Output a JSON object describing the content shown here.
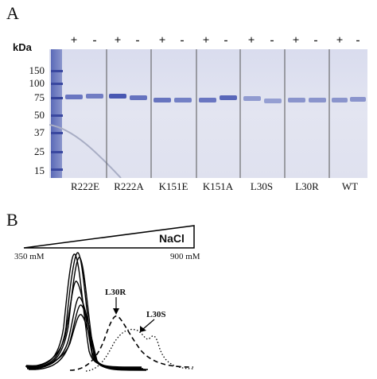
{
  "panel_a": {
    "letter": "A",
    "kda_label": "kDa",
    "markers": [
      "150",
      "100",
      "75",
      "50",
      "37",
      "25",
      "15"
    ],
    "signs": [
      "+",
      "-",
      "+",
      "-",
      "+",
      "-",
      "+",
      "-",
      "+",
      "-",
      "+",
      "-",
      "+",
      "-"
    ],
    "lanes": [
      "R222E",
      "R222A",
      "K151E",
      "K151A",
      "L30S",
      "L30R",
      "WT"
    ]
  },
  "panel_b": {
    "letter": "B",
    "gradient_label": "NaCl",
    "conc_start": "350 mM",
    "conc_end": "900 mM",
    "annotations": [
      "L30R",
      "L30S"
    ]
  }
}
